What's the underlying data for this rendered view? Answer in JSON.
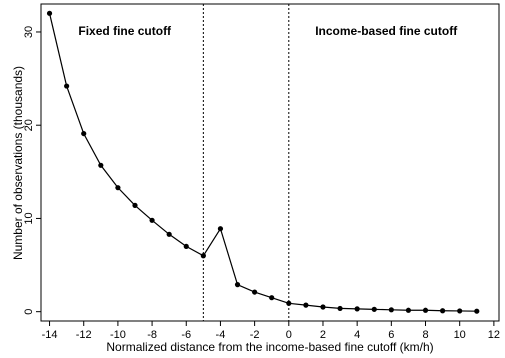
{
  "chart_data": {
    "type": "line",
    "x": [
      -14,
      -13,
      -12,
      -11,
      -10,
      -9,
      -8,
      -7,
      -6,
      -5,
      -4,
      -3,
      -2,
      -1,
      0,
      1,
      2,
      3,
      4,
      5,
      6,
      7,
      8,
      9,
      10,
      11
    ],
    "series": [
      {
        "values": [
          32.0,
          24.2,
          19.1,
          15.7,
          13.3,
          11.4,
          9.8,
          8.3,
          7.0,
          6.0,
          8.9,
          2.9,
          2.1,
          1.5,
          0.9,
          0.7,
          0.5,
          0.35,
          0.3,
          0.25,
          0.2,
          0.15,
          0.15,
          0.1,
          0.08,
          0.05
        ],
        "color": "#000000",
        "marker": "circle"
      }
    ],
    "xlabel": "Normalized distance from the income-based fine cutoff (km/h)",
    "ylabel": "Number of observations (thousands)",
    "xlim": [
      -14.5,
      12.3
    ],
    "ylim": [
      -1,
      33
    ],
    "xticks": [
      -14,
      -12,
      -10,
      -8,
      -6,
      -4,
      -2,
      0,
      2,
      4,
      6,
      8,
      10,
      12
    ],
    "xtick_labels": [
      "-14",
      "-12",
      "-10",
      "-8",
      "-6",
      "-4",
      "-2",
      "0",
      "2",
      "4",
      "6",
      "8",
      "10",
      "12"
    ],
    "yticks": [
      0,
      10,
      20,
      30
    ],
    "ytick_labels": [
      "0",
      "10",
      "20",
      "30"
    ],
    "grid": false,
    "vlines": [
      {
        "x": -5,
        "style": "dotted"
      },
      {
        "x": 0,
        "style": "dotted"
      }
    ],
    "annotations": [
      {
        "text": "Fixed fine cutoff",
        "x": -9.6,
        "y": 29.7
      },
      {
        "text": "Income-based fine cutoff",
        "x": 5.7,
        "y": 29.7
      }
    ]
  }
}
